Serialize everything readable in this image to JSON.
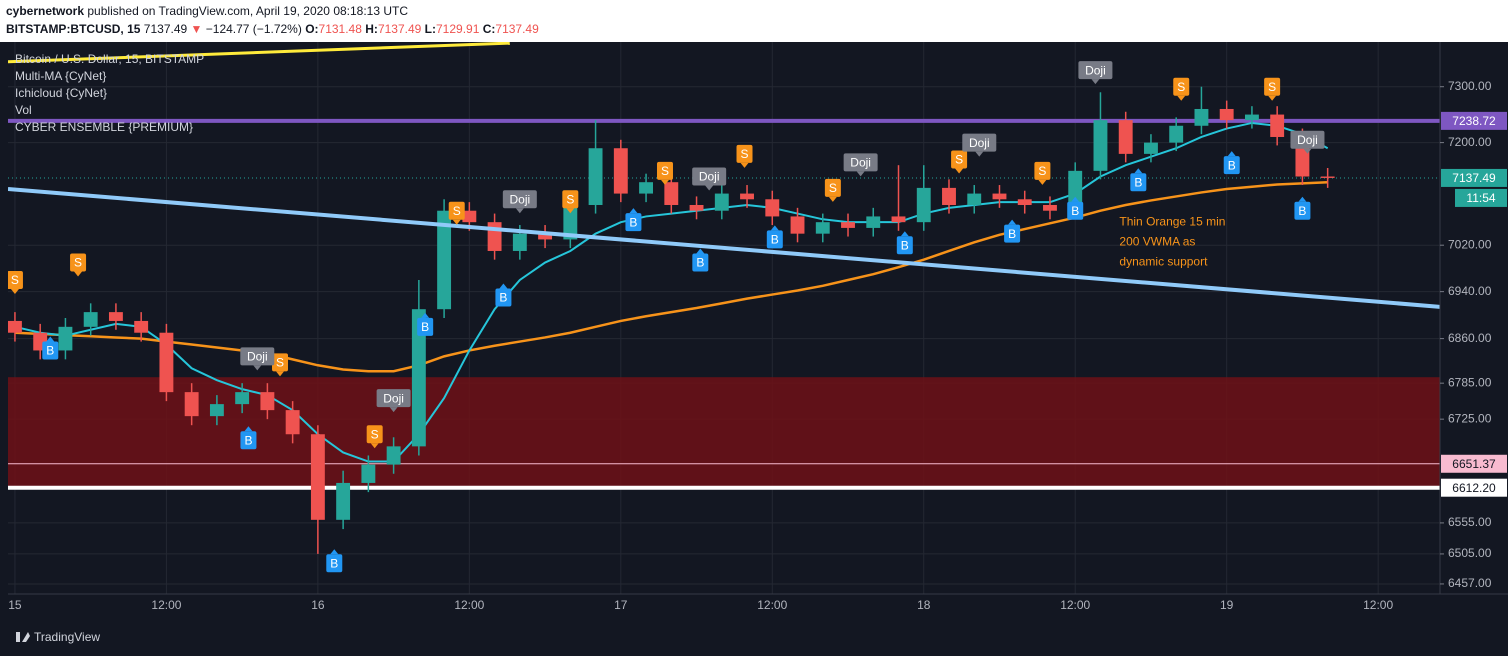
{
  "header": {
    "author": "cybernetwork",
    "published": "published on TradingView.com, April 19, 2020 08:18:13 UTC",
    "symbol": "BITSTAMP:BTCUSD, 15",
    "last": "7137.49",
    "arrow": "▼",
    "change": "−124.77 (−1.72%)",
    "ohlc": [
      {
        "key": "O:",
        "value": "7131.48"
      },
      {
        "key": "H:",
        "value": "7137.49"
      },
      {
        "key": "L:",
        "value": "7129.91"
      },
      {
        "key": "C:",
        "value": "7137.49"
      }
    ]
  },
  "footer": {
    "brand": "TradingView"
  },
  "chart_data": {
    "type": "candlestick",
    "log": true,
    "grid": true,
    "legend": [
      "Bitcoin / U.S. Dollar, 15, BITSTAMP",
      "Multi-MA {CyNet}",
      "Ichicloud {CyNet}",
      "Vol",
      "CYBER ENSEMBLE {PREMIUM}"
    ],
    "annotation": {
      "lines": [
        "Thin Orange 15 min",
        "200 VWMA as",
        "dynamic support"
      ],
      "color": "#f7931a",
      "x": 87.5,
      "y": 7060
    },
    "up_color": "#26a69a",
    "down_color": "#ef5350",
    "xlim": [
      -0.55,
      112.9
    ],
    "xticks": [
      {
        "value": 0,
        "label": "15"
      },
      {
        "value": 12,
        "label": "12:00"
      },
      {
        "value": 24,
        "label": "16"
      },
      {
        "value": 36,
        "label": "12:00"
      },
      {
        "value": 48,
        "label": "17"
      },
      {
        "value": 60,
        "label": "12:00"
      },
      {
        "value": 72,
        "label": "18"
      },
      {
        "value": 84,
        "label": "12:00"
      },
      {
        "value": 96,
        "label": "19"
      },
      {
        "value": 108,
        "label": "12:00"
      }
    ],
    "ylim": [
      6441,
      7381
    ],
    "yticks": [
      {
        "value": 7300,
        "label": "7300.00"
      },
      {
        "value": 7200,
        "label": "7200.00"
      },
      {
        "value": 7020,
        "label": "7020.00"
      },
      {
        "value": 6940,
        "label": "6940.00"
      },
      {
        "value": 6860,
        "label": "6860.00"
      },
      {
        "value": 6785,
        "label": "6785.00"
      },
      {
        "value": 6725,
        "label": "6725.00"
      },
      {
        "value": 6555,
        "label": "6555.00"
      },
      {
        "value": 6505,
        "label": "6505.00"
      },
      {
        "value": 6457,
        "label": "6457.00"
      }
    ],
    "x": [
      0,
      2,
      4,
      6,
      8,
      10,
      12,
      14,
      16,
      18,
      20,
      22,
      24,
      26,
      28,
      30,
      32,
      34,
      36,
      38,
      40,
      42,
      44,
      46,
      48,
      50,
      52,
      54,
      56,
      58,
      60,
      62,
      64,
      66,
      68,
      70,
      72,
      74,
      76,
      78,
      80,
      82,
      84,
      86,
      88,
      90,
      92,
      94,
      96,
      98,
      100,
      102,
      104
    ],
    "open": [
      6890,
      6870,
      6840,
      6880,
      6905,
      6890,
      6870,
      6770,
      6730,
      6750,
      6770,
      6740,
      6700,
      6560,
      6620,
      6650,
      6680,
      6910,
      7080,
      7060,
      7010,
      7040,
      7030,
      7090,
      7190,
      7110,
      7130,
      7090,
      7080,
      7110,
      7100,
      7070,
      7040,
      7060,
      7050,
      7070,
      7060,
      7120,
      7090,
      7110,
      7100,
      7090,
      7080,
      7150,
      7240,
      7180,
      7200,
      7230,
      7260,
      7240,
      7250,
      7210,
      7140
    ],
    "high": [
      6905,
      6885,
      6895,
      6920,
      6920,
      6905,
      6885,
      6785,
      6765,
      6785,
      6785,
      6755,
      6715,
      6640,
      6665,
      6695,
      6960,
      7100,
      7095,
      7075,
      7055,
      7055,
      7105,
      7240,
      7205,
      7145,
      7145,
      7105,
      7125,
      7125,
      7115,
      7085,
      7075,
      7075,
      7085,
      7160,
      7160,
      7135,
      7125,
      7125,
      7115,
      7105,
      7165,
      7290,
      7255,
      7215,
      7245,
      7300,
      7275,
      7265,
      7265,
      7225,
      7155
    ],
    "low": [
      6855,
      6825,
      6825,
      6865,
      6875,
      6855,
      6755,
      6715,
      6715,
      6735,
      6725,
      6685,
      6505,
      6545,
      6605,
      6635,
      6665,
      6895,
      7045,
      6995,
      6995,
      7015,
      7015,
      7075,
      7095,
      7095,
      7075,
      7065,
      7065,
      7085,
      7055,
      7025,
      7025,
      7035,
      7035,
      7045,
      7045,
      7075,
      7075,
      7085,
      7075,
      7065,
      7065,
      7135,
      7165,
      7165,
      7185,
      7215,
      7225,
      7225,
      7195,
      7125,
      7120
    ],
    "close": [
      6870,
      6840,
      6880,
      6905,
      6890,
      6870,
      6770,
      6730,
      6750,
      6770,
      6740,
      6700,
      6560,
      6620,
      6650,
      6680,
      6910,
      7080,
      7060,
      7010,
      7040,
      7030,
      7090,
      7190,
      7110,
      7130,
      7090,
      7080,
      7110,
      7100,
      7070,
      7040,
      7060,
      7050,
      7070,
      7060,
      7120,
      7090,
      7110,
      7100,
      7090,
      7080,
      7150,
      7240,
      7180,
      7200,
      7230,
      7260,
      7240,
      7250,
      7210,
      7140,
      7137.49
    ],
    "series": [
      {
        "color": "#f7931a",
        "width": 2.5,
        "values": [
          6870,
          6868,
          6866,
          6864,
          6862,
          6860,
          6855,
          6850,
          6845,
          6840,
          6835,
          6825,
          6815,
          6808,
          6805,
          6805,
          6815,
          6830,
          6840,
          6848,
          6855,
          6862,
          6870,
          6880,
          6890,
          6898,
          6905,
          6912,
          6920,
          6928,
          6935,
          6942,
          6950,
          6960,
          6970,
          6982,
          6995,
          7010,
          7025,
          7038,
          7048,
          7058,
          7068,
          7080,
          7090,
          7098,
          7105,
          7112,
          7118,
          7122,
          7126,
          7128,
          7130
        ]
      },
      {
        "color": "#26c6da",
        "width": 2,
        "values": [
          6880,
          6870,
          6865,
          6875,
          6885,
          6880,
          6850,
          6810,
          6790,
          6775,
          6765,
          6740,
          6700,
          6670,
          6655,
          6655,
          6700,
          6760,
          6840,
          6910,
          6960,
          6990,
          7010,
          7040,
          7060,
          7070,
          7075,
          7080,
          7085,
          7090,
          7085,
          7075,
          7065,
          7060,
          7060,
          7060,
          7075,
          7085,
          7090,
          7095,
          7095,
          7095,
          7110,
          7140,
          7160,
          7175,
          7190,
          7210,
          7225,
          7235,
          7230,
          7215,
          7190
        ]
      }
    ],
    "zones": [
      {
        "from": 6612.2,
        "to": 6795,
        "color": "#6e1116"
      }
    ],
    "trendlines": [
      {
        "color": "#90caf9",
        "width": 4,
        "x": [
          -0.55,
          112.9
        ],
        "y": [
          7118,
          6914
        ]
      },
      {
        "color": "#ffeb3b",
        "width": 3,
        "x": [
          -0.55,
          39.2
        ],
        "y": [
          7345,
          7379
        ]
      }
    ],
    "price_labels": [
      {
        "value": 7238.72,
        "label": "7238.72",
        "color": "#7e57c2",
        "text_color": "#ffffff",
        "line": "solid",
        "line_width": 4
      },
      {
        "value": 7137.49,
        "label": "7137.49",
        "color": "#26a69a",
        "text_color": "#ffffff",
        "line": "dotted",
        "line_width": 1,
        "countdown": "11:54"
      },
      {
        "value": 6651.37,
        "label": "6651.37",
        "color": "#f8bbd0",
        "text_color": "#131722",
        "line": "solid",
        "line_width": 1
      },
      {
        "value": 6612.2,
        "label": "6612.20",
        "color": "#ffffff",
        "text_color": "#131722",
        "line": "solid",
        "line_width": 4
      }
    ],
    "signal_colors": {
      "S": "#f7931a",
      "B": "#2196f3",
      "Doji": "#787b86"
    },
    "signals": [
      {
        "label": "S",
        "x": 0,
        "y": 6960
      },
      {
        "label": "S",
        "x": 5,
        "y": 6990
      },
      {
        "label": "S",
        "x": 21,
        "y": 6820
      },
      {
        "label": "S",
        "x": 28.5,
        "y": 6700
      },
      {
        "label": "S",
        "x": 35,
        "y": 7080
      },
      {
        "label": "S",
        "x": 44,
        "y": 7100
      },
      {
        "label": "S",
        "x": 51.5,
        "y": 7150
      },
      {
        "label": "S",
        "x": 57.8,
        "y": 7180
      },
      {
        "label": "S",
        "x": 64.8,
        "y": 7120
      },
      {
        "label": "S",
        "x": 74.8,
        "y": 7170
      },
      {
        "label": "S",
        "x": 81.4,
        "y": 7150
      },
      {
        "label": "S",
        "x": 92.4,
        "y": 7300
      },
      {
        "label": "S",
        "x": 99.6,
        "y": 7300
      },
      {
        "label": "Doji",
        "x": 19.2,
        "y": 6830
      },
      {
        "label": "Doji",
        "x": 30,
        "y": 6760
      },
      {
        "label": "Doji",
        "x": 40,
        "y": 7100
      },
      {
        "label": "Doji",
        "x": 55,
        "y": 7140
      },
      {
        "label": "Doji",
        "x": 67,
        "y": 7165
      },
      {
        "label": "Doji",
        "x": 76.4,
        "y": 7200
      },
      {
        "label": "Doji",
        "x": 85.6,
        "y": 7330
      },
      {
        "label": "Doji",
        "x": 102.4,
        "y": 7205
      },
      {
        "label": "B",
        "x": 2.8,
        "y": 6840
      },
      {
        "label": "B",
        "x": 18.5,
        "y": 6690
      },
      {
        "label": "B",
        "x": 25.3,
        "y": 6490
      },
      {
        "label": "B",
        "x": 32.5,
        "y": 6880
      },
      {
        "label": "B",
        "x": 38.7,
        "y": 6930
      },
      {
        "label": "B",
        "x": 49,
        "y": 7060
      },
      {
        "label": "B",
        "x": 54.3,
        "y": 6990
      },
      {
        "label": "B",
        "x": 60.2,
        "y": 7030
      },
      {
        "label": "B",
        "x": 70.5,
        "y": 7020
      },
      {
        "label": "B",
        "x": 79,
        "y": 7040
      },
      {
        "label": "B",
        "x": 84,
        "y": 7080
      },
      {
        "label": "B",
        "x": 89,
        "y": 7130
      },
      {
        "label": "B",
        "x": 96.4,
        "y": 7160
      },
      {
        "label": "B",
        "x": 102,
        "y": 7080
      }
    ]
  }
}
